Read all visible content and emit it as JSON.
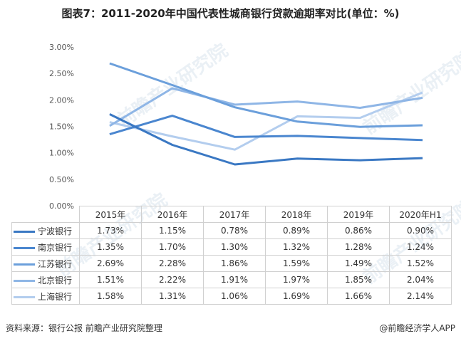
{
  "title": "图表7：2011-2020年中国代表性城商银行贷款逾期率对比(单位：%)",
  "chart_data": {
    "type": "line",
    "categories": [
      "2015年",
      "2016年",
      "2017年",
      "2018年",
      "2019年",
      "2020年H1"
    ],
    "ylim": [
      0,
      3
    ],
    "yticks": [
      "0.00%",
      "0.50%",
      "1.00%",
      "1.50%",
      "2.00%",
      "2.50%",
      "3.00%"
    ],
    "grid": false,
    "legend": "data-table",
    "series": [
      {
        "name": "宁波银行",
        "color": "#3a78c3",
        "values": [
          1.73,
          1.15,
          0.78,
          0.89,
          0.86,
          0.9
        ],
        "labels": [
          "1.73%",
          "1.15%",
          "0.78%",
          "0.89%",
          "0.86%",
          "0.90%"
        ]
      },
      {
        "name": "南京银行",
        "color": "#4a86cf",
        "values": [
          1.35,
          1.7,
          1.3,
          1.32,
          1.28,
          1.24
        ],
        "labels": [
          "1.35%",
          "1.70%",
          "1.30%",
          "1.32%",
          "1.28%",
          "1.24%"
        ]
      },
      {
        "name": "江苏银行",
        "color": "#6b9fdb",
        "values": [
          2.69,
          2.28,
          1.86,
          1.59,
          1.49,
          1.52
        ],
        "labels": [
          "2.69%",
          "2.28%",
          "1.86%",
          "1.59%",
          "1.49%",
          "1.52%"
        ]
      },
      {
        "name": "北京银行",
        "color": "#8fb6e6",
        "values": [
          1.51,
          2.22,
          1.91,
          1.97,
          1.85,
          2.04
        ],
        "labels": [
          "1.51%",
          "2.22%",
          "1.91%",
          "1.97%",
          "1.85%",
          "2.04%"
        ]
      },
      {
        "name": "上海银行",
        "color": "#b3cdee",
        "values": [
          1.58,
          1.31,
          1.06,
          1.69,
          1.66,
          2.14
        ],
        "labels": [
          "1.58%",
          "1.31%",
          "1.06%",
          "1.69%",
          "1.66%",
          "2.14%"
        ]
      }
    ]
  },
  "footer": {
    "source": "资料来源：银行公报 前瞻产业研究院整理",
    "brand": "@前瞻经济学人APP"
  },
  "watermark": "前瞻产业研究院"
}
